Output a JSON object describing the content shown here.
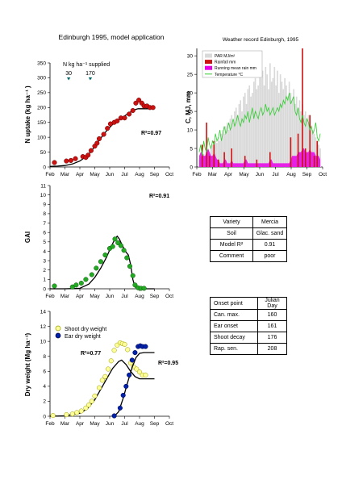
{
  "figure_title": "Edinburgh 1995, model application",
  "chart_data": [
    {
      "id": "n_uptake",
      "type": "scatter",
      "title": "",
      "ylabel": "N uptake (kg ha⁻¹ )",
      "xlabel": "",
      "x_ticks": [
        "Feb",
        "Mar",
        "Apr",
        "May",
        "Jun",
        "Jul",
        "Aug",
        "Sep",
        "Oct"
      ],
      "ylim": [
        0,
        350
      ],
      "y_ticks": [
        "0",
        "50",
        "100",
        "150",
        "200",
        "250",
        "300",
        "350"
      ],
      "r2_label": "R²=0.97",
      "annotation": "N kg ha⁻¹ supplied",
      "n_applications": [
        {
          "month": 1.25,
          "label": "30"
        },
        {
          "month": 2.7,
          "label": "170"
        }
      ],
      "observed": [
        [
          0.3,
          15
        ],
        [
          1.1,
          20
        ],
        [
          1.4,
          22
        ],
        [
          1.7,
          28
        ],
        [
          2.2,
          35
        ],
        [
          2.4,
          32
        ],
        [
          2.55,
          40
        ],
        [
          2.75,
          55
        ],
        [
          3.0,
          70
        ],
        [
          3.15,
          80
        ],
        [
          3.3,
          95
        ],
        [
          3.6,
          110
        ],
        [
          3.85,
          130
        ],
        [
          4.05,
          145
        ],
        [
          4.3,
          150
        ],
        [
          4.5,
          155
        ],
        [
          4.75,
          165
        ],
        [
          5.0,
          165
        ],
        [
          5.3,
          178
        ],
        [
          5.55,
          190
        ],
        [
          5.75,
          215
        ],
        [
          5.95,
          225
        ],
        [
          6.15,
          215
        ],
        [
          6.3,
          205
        ],
        [
          6.5,
          205
        ],
        [
          6.7,
          200
        ],
        [
          6.9,
          200
        ]
      ],
      "model": [
        [
          0,
          2
        ],
        [
          0.5,
          3
        ],
        [
          1.0,
          5
        ],
        [
          1.5,
          10
        ],
        [
          2.0,
          20
        ],
        [
          2.5,
          38
        ],
        [
          2.8,
          55
        ],
        [
          3.0,
          70
        ],
        [
          3.3,
          90
        ],
        [
          3.6,
          110
        ],
        [
          3.9,
          128
        ],
        [
          4.2,
          143
        ],
        [
          4.5,
          155
        ],
        [
          4.8,
          165
        ],
        [
          5.1,
          175
        ],
        [
          5.4,
          185
        ],
        [
          5.7,
          193
        ],
        [
          5.9,
          196
        ],
        [
          6.2,
          196
        ],
        [
          7.0,
          196
        ]
      ],
      "marker_color": "#cc1111"
    },
    {
      "id": "weather",
      "type": "bar",
      "title": "Weather record Edinburgh, 1995",
      "ylabel": "C, MJ, mm",
      "x_ticks": [
        "Feb",
        "Mar",
        "Apr",
        "May",
        "Jun",
        "Jul",
        "Aug",
        "Sep",
        "Oct"
      ],
      "ylim": [
        0,
        32
      ],
      "y_ticks": [
        "0",
        "5",
        "10",
        "15",
        "20",
        "25",
        "30"
      ],
      "legend_placement": "top-left",
      "series": [
        {
          "name": "PAR MJ/m²",
          "color": "#d9d9d9",
          "values": [
            2,
            2.5,
            3,
            3.5,
            3,
            4,
            4.5,
            4,
            5,
            6,
            5.5,
            7,
            6.5,
            8,
            7,
            9,
            10,
            9,
            11,
            12,
            10,
            13,
            14,
            12,
            15,
            16,
            14,
            17,
            18,
            15,
            19,
            20,
            17,
            21,
            22,
            19,
            20,
            23,
            24,
            21,
            22,
            25,
            24,
            26,
            22,
            27,
            25,
            21,
            28,
            23,
            24,
            27,
            22,
            26,
            20,
            25,
            23,
            21,
            24,
            22,
            19,
            23,
            20,
            18,
            21,
            17,
            19,
            16,
            18,
            15,
            17,
            14,
            15,
            13,
            14,
            12,
            11,
            10,
            9,
            8,
            7,
            6,
            5
          ]
        },
        {
          "name": "Rainfall mm",
          "color": "#cc1111",
          "values": [
            0,
            0,
            6,
            0,
            0,
            12,
            0,
            3,
            0,
            0,
            7,
            0,
            0,
            2,
            0,
            0,
            0,
            4,
            0,
            0,
            0,
            0,
            5,
            0,
            0,
            0,
            0,
            0,
            0,
            0,
            0,
            3,
            0,
            0,
            0,
            0,
            0,
            0,
            0,
            2,
            0,
            0,
            0,
            0,
            0,
            0,
            0,
            0,
            4,
            0,
            0,
            0,
            0,
            0,
            0,
            0,
            0,
            0,
            0,
            0,
            0,
            0,
            8,
            0,
            0,
            0,
            0,
            9,
            0,
            0,
            32,
            0,
            5,
            0,
            0,
            14,
            0,
            0,
            3,
            0,
            7,
            0,
            0
          ]
        },
        {
          "name": "Running mean rain mm",
          "color": "#e600e6",
          "values": [
            3,
            4,
            4,
            3,
            3,
            4,
            5,
            4,
            3,
            3,
            4,
            3,
            2,
            2,
            1,
            1,
            1,
            2,
            2,
            1,
            1,
            1,
            2,
            1,
            1,
            1,
            1,
            1,
            1,
            1,
            1,
            2,
            2,
            1,
            1,
            1,
            1,
            1,
            1,
            1,
            1,
            1,
            1,
            1,
            1,
            1,
            1,
            1,
            2,
            2,
            1,
            1,
            1,
            1,
            1,
            1,
            1,
            1,
            1,
            1,
            1,
            1,
            2,
            3,
            3,
            3,
            3,
            4,
            4,
            4,
            5,
            5,
            4,
            4,
            4,
            5,
            4,
            4,
            4,
            3,
            3,
            3,
            2
          ]
        },
        {
          "name": "Temperature °C",
          "color": "#33cc33",
          "values": [
            4,
            6,
            3,
            7,
            5,
            4,
            8,
            6,
            5,
            7,
            6,
            9,
            7,
            8,
            10,
            7,
            9,
            11,
            9,
            10,
            12,
            10,
            11,
            13,
            11,
            12,
            14,
            12,
            11,
            13,
            12,
            14,
            13,
            15,
            12,
            14,
            16,
            13,
            15,
            14,
            13,
            15,
            16,
            14,
            15,
            17,
            15,
            16,
            14,
            15,
            16,
            14,
            15,
            16,
            15,
            17,
            16,
            18,
            17,
            19,
            18,
            20,
            17,
            18,
            19,
            15,
            14,
            16,
            13,
            12,
            14,
            12,
            11,
            13,
            12,
            10,
            11,
            9,
            10,
            12,
            8,
            7,
            9
          ]
        }
      ]
    },
    {
      "id": "gai",
      "type": "scatter",
      "ylabel": "GAI",
      "x_ticks": [
        "Feb",
        "Mar",
        "Apr",
        "May",
        "Jun",
        "Jul",
        "Aug",
        "Sep",
        "Oct"
      ],
      "ylim": [
        0,
        11
      ],
      "y_ticks": [
        "0",
        "1",
        "2",
        "3",
        "4",
        "5",
        "6",
        "7",
        "8",
        "9",
        "10",
        "11"
      ],
      "r2_label": "R²=0.91",
      "observed": [
        [
          0.3,
          0.3
        ],
        [
          1.5,
          0.2
        ],
        [
          1.75,
          0.4
        ],
        [
          2.1,
          0.6
        ],
        [
          2.4,
          1.0
        ],
        [
          2.8,
          1.5
        ],
        [
          3.1,
          2.2
        ],
        [
          3.4,
          2.9
        ],
        [
          3.7,
          3.6
        ],
        [
          4.0,
          4.3
        ],
        [
          4.2,
          4.5
        ],
        [
          4.35,
          5.3
        ],
        [
          4.55,
          4.9
        ],
        [
          4.75,
          4.6
        ],
        [
          4.95,
          4.1
        ],
        [
          5.15,
          3.3
        ],
        [
          5.35,
          2.4
        ],
        [
          5.55,
          1.4
        ],
        [
          5.7,
          0.4
        ],
        [
          5.9,
          0.1
        ],
        [
          6.1,
          0.05
        ],
        [
          6.3,
          0.05
        ]
      ],
      "model": [
        [
          0,
          0
        ],
        [
          1.0,
          0
        ],
        [
          2.0,
          0.05
        ],
        [
          2.6,
          0.5
        ],
        [
          3.0,
          1.2
        ],
        [
          3.4,
          2.2
        ],
        [
          3.8,
          3.4
        ],
        [
          4.1,
          4.5
        ],
        [
          4.35,
          5.3
        ],
        [
          4.5,
          5.6
        ],
        [
          4.65,
          5.3
        ],
        [
          4.85,
          4.6
        ],
        [
          5.1,
          3.9
        ],
        [
          5.25,
          3.6
        ],
        [
          5.4,
          2.6
        ],
        [
          5.55,
          1.0
        ],
        [
          5.7,
          0.2
        ],
        [
          5.9,
          0
        ],
        [
          7.0,
          0
        ]
      ],
      "marker_color": "#22aa22"
    },
    {
      "id": "dry_weight",
      "type": "scatter",
      "ylabel": "Dry weight (Mg ha⁻¹)",
      "x_ticks": [
        "Feb",
        "Mar",
        "Apr",
        "May",
        "Jun",
        "Jul",
        "Aug",
        "Sep",
        "Oct"
      ],
      "ylim": [
        0,
        14
      ],
      "y_ticks": [
        "0",
        "2",
        "4",
        "6",
        "8",
        "10",
        "12",
        "14"
      ],
      "series": [
        {
          "name": "Shoot dry weight",
          "color": "#ffff99",
          "edge": "#999900",
          "r2_label": "R²=0.77",
          "observed": [
            [
              0.2,
              0.1
            ],
            [
              1.1,
              0.2
            ],
            [
              1.5,
              0.3
            ],
            [
              1.8,
              0.5
            ],
            [
              2.1,
              0.7
            ],
            [
              2.4,
              1.1
            ],
            [
              2.6,
              1.5
            ],
            [
              2.8,
              2.0
            ],
            [
              3.0,
              2.7
            ],
            [
              3.3,
              3.8
            ],
            [
              3.5,
              4.8
            ],
            [
              3.7,
              5.3
            ],
            [
              3.9,
              6.3
            ],
            [
              4.1,
              7.4
            ],
            [
              4.3,
              8.8
            ],
            [
              4.5,
              9.5
            ],
            [
              4.7,
              9.8
            ],
            [
              4.85,
              9.7
            ],
            [
              5.0,
              9.6
            ],
            [
              5.2,
              8.9
            ],
            [
              5.4,
              7.1
            ],
            [
              5.6,
              6.6
            ],
            [
              5.8,
              6.3
            ],
            [
              6.0,
              5.9
            ],
            [
              6.2,
              5.5
            ],
            [
              6.4,
              5.5
            ]
          ],
          "model": [
            [
              0,
              0
            ],
            [
              1.0,
              0.05
            ],
            [
              2.0,
              0.4
            ],
            [
              2.5,
              1.0
            ],
            [
              3.0,
              2.2
            ],
            [
              3.4,
              3.6
            ],
            [
              3.8,
              5.0
            ],
            [
              4.2,
              6.4
            ],
            [
              4.6,
              7.3
            ],
            [
              4.8,
              7.5
            ],
            [
              5.1,
              6.9
            ],
            [
              5.4,
              6.0
            ],
            [
              5.7,
              5.3
            ],
            [
              6.0,
              5.0
            ],
            [
              7.0,
              5.0
            ]
          ]
        },
        {
          "name": "Ear dry weight",
          "color": "#0022aa",
          "edge": "#000044",
          "r2_label": "R²=0.95",
          "observed": [
            [
              4.3,
              0.05
            ],
            [
              4.7,
              1.1
            ],
            [
              4.9,
              2.8
            ],
            [
              5.1,
              4.0
            ],
            [
              5.3,
              5.5
            ],
            [
              5.5,
              7.5
            ],
            [
              5.7,
              8.5
            ],
            [
              5.9,
              9.3
            ],
            [
              6.05,
              9.4
            ],
            [
              6.2,
              9.3
            ],
            [
              6.4,
              9.3
            ]
          ],
          "model": [
            [
              4.3,
              0
            ],
            [
              4.6,
              0.6
            ],
            [
              4.9,
              2.4
            ],
            [
              5.2,
              4.5
            ],
            [
              5.5,
              6.5
            ],
            [
              5.75,
              7.8
            ],
            [
              6.0,
              8.4
            ],
            [
              6.3,
              8.5
            ],
            [
              7.0,
              8.5
            ]
          ]
        }
      ]
    }
  ],
  "variety_table": [
    {
      "label": "Variety",
      "value": "Mercia"
    },
    {
      "label": "Soil",
      "value": "Glac. sand"
    },
    {
      "label": "Model R²",
      "value": "0.91"
    },
    {
      "label": "Comment",
      "value": "poor"
    }
  ],
  "onset_table": {
    "header": {
      "label": "Onset point",
      "value": "Julian Day"
    },
    "rows": [
      {
        "label": "Can. max.",
        "value": "160"
      },
      {
        "label": "Ear onset",
        "value": "161"
      },
      {
        "label": "Shoot decay",
        "value": "176"
      },
      {
        "label": "Rap. sen.",
        "value": "208"
      }
    ]
  }
}
